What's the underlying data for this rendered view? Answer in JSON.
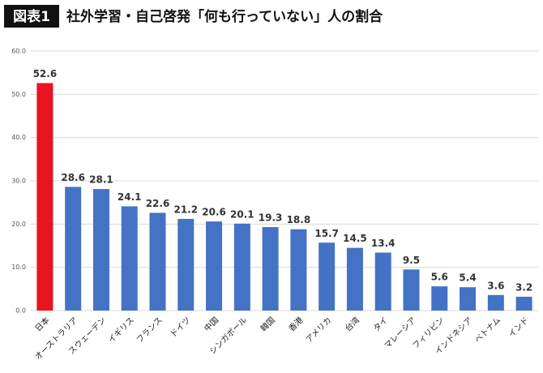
{
  "chart_data": {
    "type": "bar",
    "badge": "図表1",
    "title": "社外学習・自己啓発「何も行っていない」人の割合",
    "categories": [
      "日本",
      "オーストラリア",
      "スウェーデン",
      "イギリス",
      "フランス",
      "ドイツ",
      "中国",
      "シンガポール",
      "韓国",
      "香港",
      "アメリカ",
      "台湾",
      "タイ",
      "マレーシア",
      "フィリピン",
      "インドネシア",
      "ベトナム",
      "インド"
    ],
    "values": [
      52.6,
      28.6,
      28.1,
      24.1,
      22.6,
      21.2,
      20.6,
      20.1,
      19.3,
      18.8,
      15.7,
      14.5,
      13.4,
      9.5,
      5.6,
      5.4,
      3.6,
      3.2
    ],
    "colors": [
      "#e8141e",
      "#4472c4",
      "#4472c4",
      "#4472c4",
      "#4472c4",
      "#4472c4",
      "#4472c4",
      "#4472c4",
      "#4472c4",
      "#4472c4",
      "#4472c4",
      "#4472c4",
      "#4472c4",
      "#4472c4",
      "#4472c4",
      "#4472c4",
      "#4472c4",
      "#4472c4"
    ],
    "ylim": [
      0,
      60
    ],
    "yticks": [
      {
        "value": 0,
        "label": "0.0"
      },
      {
        "value": 10,
        "label": "10.0"
      },
      {
        "value": 20,
        "label": "20.0"
      },
      {
        "value": 30,
        "label": "30.0"
      },
      {
        "value": 40,
        "label": "40.0"
      },
      {
        "value": 50,
        "label": "50.0"
      },
      {
        "value": 60,
        "label": "60.0"
      }
    ],
    "grid": true
  }
}
